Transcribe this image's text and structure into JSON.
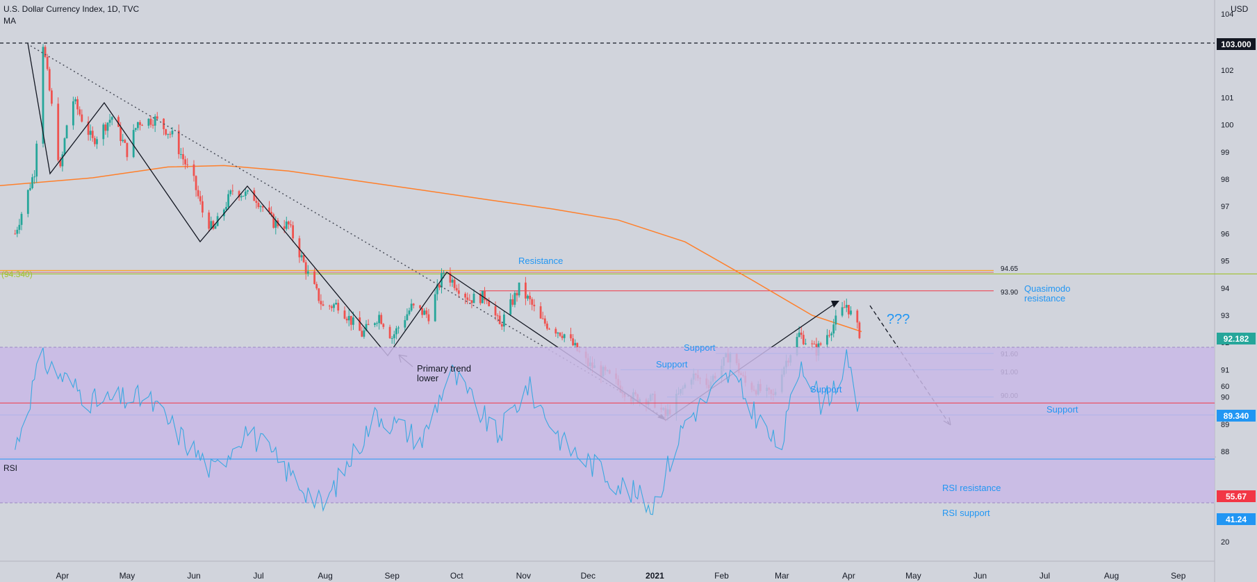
{
  "header": {
    "symbol_title": "U.S. Dollar Currency Index, 1D, TVC",
    "indicator": "MA",
    "currency": "USD",
    "rsi_label": "RSI"
  },
  "colors": {
    "background": "#d1d4dc",
    "candle_up": "#26a69a",
    "candle_down": "#ef5350",
    "moving_average": "#ff7f2a",
    "annotation_blue": "#2196f3",
    "resistance_red": "#f23645",
    "olive_line": "#a0c030",
    "rsi_line": "#3aa8e0",
    "rsi_band": "#c9b8e6",
    "last_price_badge": "#26a69a"
  },
  "price_badges": {
    "top": "103.000",
    "last": "92.182",
    "support": "89.340",
    "rsi_resistance": "55.67",
    "rsi_support": "41.24",
    "olive_left": "(94.340)"
  },
  "annotations": {
    "resistance": "Resistance",
    "quasimodo_1": "Quasimodo",
    "quasimodo_2": "resistance",
    "question": "???",
    "support_a": "Support",
    "support_b": "Support",
    "support_c": "Support",
    "support_d": "Support",
    "primary_1": "Primary trend",
    "primary_2": "lower",
    "rsi_resistance": "RSI resistance",
    "rsi_support": "RSI support"
  },
  "chart_data": {
    "type": "line",
    "title": "U.S. Dollar Currency Index, 1D, TVC",
    "indicator": "MA",
    "ylabel": "USD",
    "ylim": [
      87.6,
      104.2
    ],
    "y_ticks": [
      104,
      103,
      102,
      101,
      100,
      99,
      98,
      97,
      96,
      95,
      94,
      93,
      92,
      91,
      90,
      89,
      88
    ],
    "x_ticks": [
      "Apr",
      "May",
      "Jun",
      "Jul",
      "Aug",
      "Sep",
      "Oct",
      "Nov",
      "Dec",
      "2021",
      "Feb",
      "Mar",
      "Apr",
      "May",
      "Jun",
      "Jul",
      "Aug",
      "Sep"
    ],
    "series": [
      {
        "name": "U.S. Dollar Currency Index",
        "x": [
          "2020-03-10",
          "2020-03-19",
          "2020-03-23",
          "2020-03-31",
          "2020-04-03",
          "2020-04-06",
          "2020-04-15",
          "2020-04-24",
          "2020-05-01",
          "2020-05-06",
          "2020-05-14",
          "2020-05-22",
          "2020-06-01",
          "2020-06-05",
          "2020-06-10",
          "2020-06-19",
          "2020-06-30",
          "2020-07-08",
          "2020-07-15",
          "2020-07-24",
          "2020-07-31",
          "2020-08-07",
          "2020-08-18",
          "2020-08-26",
          "2020-09-01",
          "2020-09-10",
          "2020-09-18",
          "2020-09-25",
          "2020-10-07",
          "2020-10-15",
          "2020-10-21",
          "2020-10-30",
          "2020-11-04",
          "2020-11-09",
          "2020-11-20",
          "2020-12-01",
          "2020-12-10",
          "2020-12-21",
          "2020-12-31",
          "2021-01-06",
          "2021-01-18",
          "2021-01-26",
          "2021-02-05",
          "2021-02-12",
          "2021-02-25",
          "2021-03-01",
          "2021-03-09",
          "2021-03-17",
          "2021-03-31",
          "2021-04-07"
        ],
        "values": [
          96.0,
          98.3,
          103.0,
          98.3,
          100.0,
          100.9,
          99.4,
          100.3,
          99.0,
          100.1,
          100.2,
          99.6,
          97.9,
          96.8,
          96.1,
          97.6,
          97.3,
          96.4,
          96.3,
          94.5,
          93.3,
          93.4,
          92.3,
          93.0,
          92.2,
          93.3,
          93.0,
          94.6,
          93.6,
          93.7,
          92.6,
          94.0,
          93.5,
          92.8,
          92.3,
          91.2,
          90.8,
          90.0,
          89.9,
          89.3,
          90.8,
          90.5,
          91.6,
          90.5,
          90.0,
          91.0,
          92.3,
          91.7,
          93.4,
          92.18
        ]
      },
      {
        "name": "MA",
        "x": [
          "2020-03-01",
          "2020-04-15",
          "2020-05-20",
          "2020-06-15",
          "2020-07-15",
          "2020-08-15",
          "2020-09-15",
          "2020-10-15",
          "2020-11-15",
          "2020-12-15",
          "2021-01-15",
          "2021-02-15",
          "2021-03-15",
          "2021-04-07"
        ],
        "values": [
          97.75,
          98.05,
          98.45,
          98.5,
          98.3,
          97.95,
          97.6,
          97.25,
          96.9,
          96.5,
          95.7,
          94.3,
          93.0,
          92.4
        ]
      },
      {
        "name": "RSI",
        "x": [
          "2020-03-10",
          "2020-03-22",
          "2020-04-15",
          "2020-05-10",
          "2020-06-10",
          "2020-06-25",
          "2020-07-31",
          "2020-08-25",
          "2020-09-15",
          "2020-09-28",
          "2020-10-20",
          "2020-11-03",
          "2020-11-20",
          "2020-12-18",
          "2020-12-31",
          "2021-01-15",
          "2021-02-05",
          "2021-02-28",
          "2021-03-10",
          "2021-03-20",
          "2021-03-31",
          "2021-04-07"
        ],
        "values": [
          44,
          67,
          56,
          57,
          38,
          49,
          29,
          53,
          46,
          64,
          47,
          60,
          45,
          34,
          29,
          51,
          63,
          43,
          67,
          55,
          66,
          51
        ]
      }
    ],
    "levels": [
      {
        "label": "94.65",
        "value": 94.65
      },
      {
        "label": "93.90",
        "value": 93.9
      },
      {
        "label": "91.60",
        "value": 91.6
      },
      {
        "label": "91.00",
        "value": 91.0
      },
      {
        "label": "90.00",
        "value": 90.0
      },
      {
        "label": "89.340",
        "value": 89.34
      }
    ],
    "rsi": {
      "ylim": [
        15,
        75
      ],
      "ticks": [
        60,
        20
      ],
      "band": [
        30,
        70
      ],
      "resistance": 55.67,
      "support": 41.24
    },
    "grid": false,
    "legend": "none"
  }
}
